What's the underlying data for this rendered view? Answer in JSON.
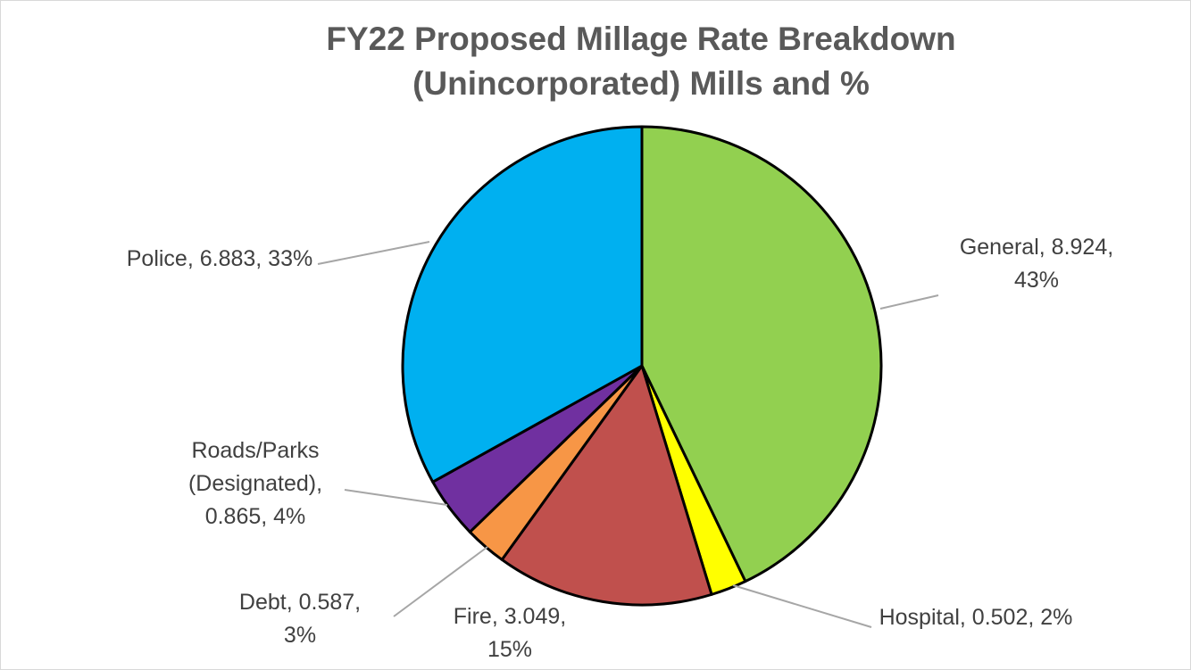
{
  "chart_data": {
    "type": "pie",
    "title": "FY22 Proposed Millage Rate Breakdown (Unincorporated) Mills and %",
    "values": [
      8.924,
      0.502,
      3.049,
      0.587,
      0.865,
      6.883
    ],
    "value_labels": [
      "General, 8.924, 43%",
      "Hospital, 0.502, 2%",
      "Fire, 3.049, 15%",
      "Debt, 0.587, 3%",
      "Roads/Parks (Designated), 0.865, 4%",
      "Police, 6.883, 33%"
    ],
    "colors": [
      "#92d050",
      "#ffff00",
      "#c0504d",
      "#f79646",
      "#7030a0",
      "#00b0f0"
    ]
  }
}
